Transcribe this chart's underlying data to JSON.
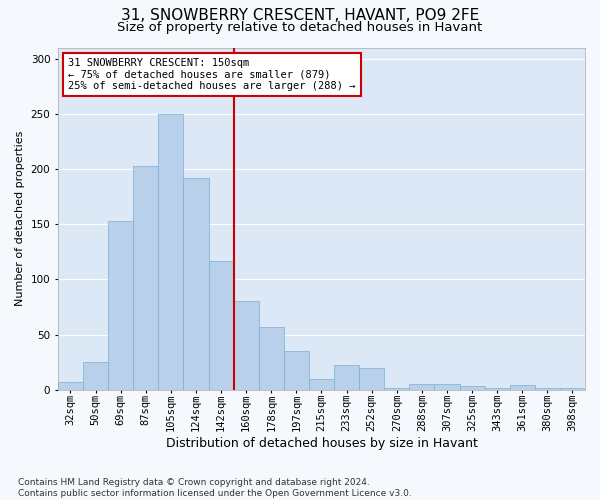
{
  "title1": "31, SNOWBERRY CRESCENT, HAVANT, PO9 2FE",
  "title2": "Size of property relative to detached houses in Havant",
  "xlabel": "Distribution of detached houses by size in Havant",
  "ylabel": "Number of detached properties",
  "bar_labels": [
    "32sqm",
    "50sqm",
    "69sqm",
    "87sqm",
    "105sqm",
    "124sqm",
    "142sqm",
    "160sqm",
    "178sqm",
    "197sqm",
    "215sqm",
    "233sqm",
    "252sqm",
    "270sqm",
    "288sqm",
    "307sqm",
    "325sqm",
    "343sqm",
    "361sqm",
    "380sqm",
    "398sqm"
  ],
  "bar_values": [
    7,
    25,
    153,
    203,
    250,
    192,
    117,
    80,
    57,
    35,
    10,
    22,
    20,
    2,
    5,
    5,
    3,
    2,
    4,
    2,
    2
  ],
  "bar_color": "#b8d0ea",
  "bar_edgecolor": "#7aafd4",
  "vline_color": "#cc0000",
  "annotation_text": "31 SNOWBERRY CRESCENT: 150sqm\n← 75% of detached houses are smaller (879)\n25% of semi-detached houses are larger (288) →",
  "annotation_box_color": "#ffffff",
  "annotation_box_edgecolor": "#cc0000",
  "ylim": [
    0,
    310
  ],
  "yticks": [
    0,
    50,
    100,
    150,
    200,
    250,
    300
  ],
  "background_color": "#dce8f5",
  "grid_color": "#ffffff",
  "fig_background": "#f5f8fd",
  "footnote": "Contains HM Land Registry data © Crown copyright and database right 2024.\nContains public sector information licensed under the Open Government Licence v3.0.",
  "title1_fontsize": 11,
  "title2_fontsize": 9.5,
  "xlabel_fontsize": 9,
  "ylabel_fontsize": 8,
  "tick_fontsize": 7.5,
  "annot_fontsize": 7.5,
  "footnote_fontsize": 6.5
}
